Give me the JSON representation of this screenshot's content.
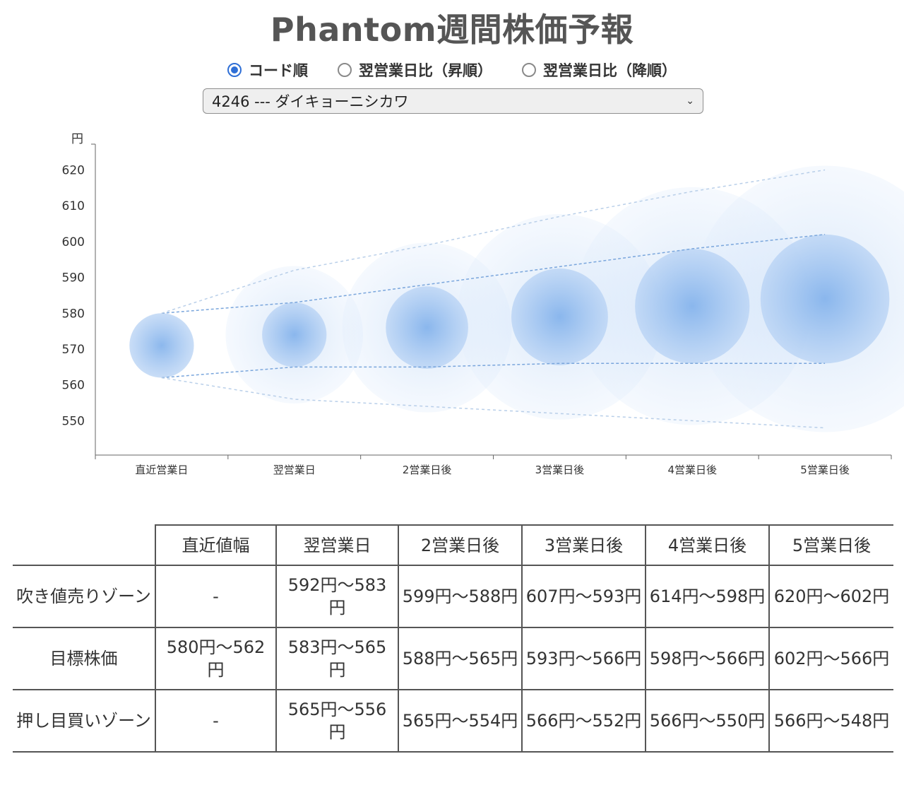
{
  "title": "Phantom週間株価予報",
  "sort_options": [
    {
      "label": "コード順",
      "checked": true
    },
    {
      "label": "翌営業日比（昇順）",
      "checked": false
    },
    {
      "label": "翌営業日比（降順）",
      "checked": false
    }
  ],
  "stock_select": {
    "value": "4246 --- ダイキョーニシカワ"
  },
  "chart_data": {
    "type": "scatter",
    "y_unit_label": "円",
    "ylim": [
      542,
      628
    ],
    "y_ticks": [
      550,
      560,
      570,
      580,
      590,
      600,
      610,
      620
    ],
    "categories": [
      "直近営業日",
      "翌営業日",
      "2営業日後",
      "3営業日後",
      "4営業日後",
      "5営業日後"
    ],
    "target_center": [
      571,
      574,
      576,
      579,
      582,
      584
    ],
    "target_upper": [
      580,
      583,
      588,
      593,
      598,
      602
    ],
    "target_lower": [
      562,
      565,
      565,
      566,
      566,
      566
    ],
    "zone_upper": [
      580,
      592,
      599,
      607,
      614,
      620
    ],
    "zone_lower": [
      562,
      556,
      554,
      552,
      550,
      548
    ]
  },
  "table": {
    "headers": [
      "",
      "直近値幅",
      "翌営業日",
      "2営業日後",
      "3営業日後",
      "4営業日後",
      "5営業日後"
    ],
    "rows": [
      {
        "label": "吹き値売りゾーン",
        "cells": [
          "-",
          "592円〜583円",
          "599円〜588円",
          "607円〜593円",
          "614円〜598円",
          "620円〜602円"
        ]
      },
      {
        "label": "目標株価",
        "cells": [
          "580円〜562円",
          "583円〜565円",
          "588円〜565円",
          "593円〜566円",
          "598円〜566円",
          "602円〜566円"
        ]
      },
      {
        "label": "押し目買いゾーン",
        "cells": [
          "-",
          "565円〜556円",
          "565円〜554円",
          "566円〜552円",
          "566円〜550円",
          "566円〜548円"
        ]
      }
    ]
  }
}
